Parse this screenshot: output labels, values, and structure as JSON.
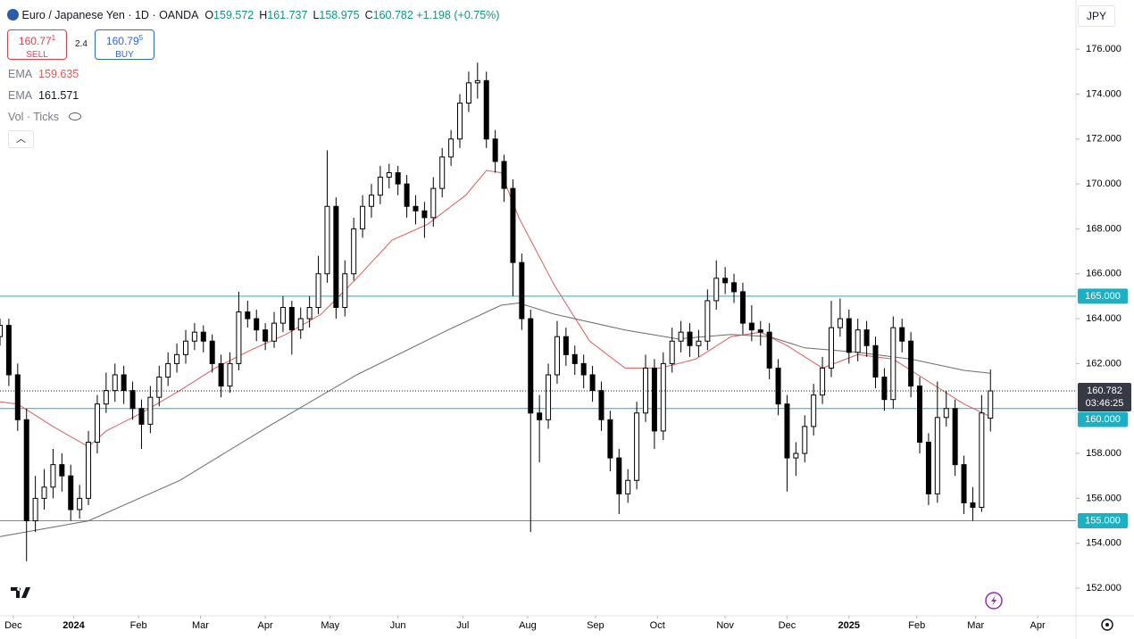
{
  "header": {
    "symbol": "Euro / Japanese Yen",
    "interval": "1D",
    "exchange": "OANDA",
    "ohlc": [
      {
        "key": "O",
        "value": "159.572"
      },
      {
        "key": "H",
        "value": "161.737"
      },
      {
        "key": "L",
        "value": "158.975"
      },
      {
        "key": "C",
        "value": "160.782"
      }
    ],
    "change": "+1.198 (+0.75%)",
    "currency": "JPY"
  },
  "trade": {
    "sell_price": "160.77",
    "sell_pip": "1",
    "sell": "SELL",
    "spread": "2.4",
    "buy_price": "160.79",
    "buy_pip": "5",
    "buy": "BUY"
  },
  "indicators": [
    {
      "name": "EMA",
      "value": "159.635"
    },
    {
      "name": "EMA",
      "value": "161.571"
    },
    {
      "name": "Vol · Ticks"
    }
  ],
  "chart_data": {
    "type": "candlestick",
    "up_color": "#ffffff",
    "down_color": "#000000",
    "grid": false,
    "x": [
      0,
      3,
      6,
      9,
      12,
      15,
      18,
      21,
      24,
      27,
      30,
      33,
      36,
      39,
      42,
      45,
      48,
      51,
      54,
      57,
      60,
      63,
      66,
      69,
      72,
      75,
      78,
      81,
      84,
      87,
      90,
      93,
      96,
      99,
      102,
      105,
      108,
      111,
      114,
      117,
      120,
      123,
      126,
      129,
      132,
      135,
      138,
      141,
      144,
      147,
      150,
      153,
      156,
      159,
      162,
      165,
      168,
      171,
      174,
      177,
      180,
      183,
      186,
      189,
      192,
      195,
      198,
      201,
      204,
      207,
      210,
      213,
      216,
      219,
      222,
      225,
      228,
      231,
      234,
      237,
      240,
      243,
      246,
      249,
      252,
      255,
      258,
      261,
      264,
      267,
      270,
      273,
      276,
      279,
      282,
      285,
      288,
      291,
      294,
      297,
      300,
      303,
      306,
      309,
      312,
      315,
      318,
      321,
      324,
      327,
      330,
      333,
      336
    ],
    "open": [
      163.2,
      163.7,
      161.5,
      159.5,
      155.0,
      156.0,
      156.5,
      157.5,
      157.0,
      155.5,
      156.0,
      158.5,
      160.2,
      160.8,
      161.5,
      160.8,
      160.0,
      159.3,
      160.5,
      161.4,
      162.0,
      162.4,
      163.0,
      163.4,
      163.0,
      162.0,
      161.0,
      162.0,
      164.3,
      164.0,
      163.5,
      163.0,
      163.8,
      164.5,
      163.5,
      164.0,
      164.5,
      166.0,
      169.0,
      164.5,
      166.0,
      168.0,
      169.0,
      169.5,
      170.3,
      170.5,
      170.0,
      169.0,
      168.8,
      168.5,
      169.8,
      171.2,
      172.0,
      173.6,
      174.5,
      174.6,
      172.0,
      171.0,
      169.8,
      166.5,
      164.0,
      159.8,
      159.5,
      161.5,
      163.2,
      162.4,
      162.0,
      161.5,
      160.8,
      159.5,
      157.8,
      156.2,
      156.8,
      159.8,
      161.8,
      159.0,
      162.0,
      163.0,
      163.4,
      162.8,
      163.0,
      164.8,
      165.8,
      165.6,
      165.2,
      163.8,
      163.5,
      163.4,
      161.8,
      160.2,
      157.8,
      158.0,
      159.2,
      160.6,
      161.8,
      163.6,
      164.0,
      162.5,
      163.5,
      162.8,
      161.4,
      160.4,
      163.6,
      163.0,
      161.0,
      158.5,
      156.2,
      159.6,
      160.0,
      157.5,
      155.8,
      155.6,
      159.572
    ],
    "high": [
      164.0,
      164.0,
      162.0,
      160.0,
      157.0,
      157.3,
      158.2,
      158.0,
      157.5,
      156.6,
      159.0,
      160.6,
      161.6,
      162.0,
      161.9,
      161.2,
      160.4,
      161.0,
      161.9,
      162.5,
      162.9,
      163.5,
      163.8,
      163.7,
      163.3,
      162.4,
      162.5,
      165.2,
      164.8,
      164.4,
      163.8,
      164.3,
      165.0,
      164.8,
      164.5,
      165.0,
      166.8,
      171.5,
      169.4,
      166.6,
      168.5,
      169.5,
      170.0,
      170.8,
      170.9,
      170.8,
      170.4,
      169.5,
      169.2,
      170.3,
      171.6,
      172.4,
      174.0,
      175.0,
      175.4,
      175.0,
      172.4,
      171.3,
      170.2,
      166.9,
      164.4,
      160.6,
      162.0,
      163.9,
      163.6,
      162.8,
      162.4,
      161.9,
      161.2,
      159.9,
      158.2,
      157.3,
      160.3,
      162.4,
      162.2,
      162.5,
      163.6,
      163.9,
      163.8,
      163.5,
      165.3,
      166.6,
      166.3,
      166.0,
      165.6,
      164.6,
      163.9,
      163.8,
      162.2,
      160.6,
      158.5,
      159.7,
      161.1,
      162.3,
      164.8,
      164.9,
      164.4,
      164.0,
      163.9,
      163.2,
      161.8,
      164.1,
      164.0,
      163.4,
      161.4,
      158.9,
      161.2,
      160.8,
      160.4,
      157.9,
      156.5,
      160.6,
      161.737
    ],
    "low": [
      162.8,
      161.0,
      159.0,
      153.2,
      154.5,
      155.5,
      156.0,
      156.3,
      155.0,
      155.1,
      155.7,
      158.0,
      159.8,
      160.3,
      160.2,
      159.5,
      158.2,
      158.9,
      160.1,
      161.0,
      161.6,
      162.0,
      162.6,
      162.5,
      161.6,
      160.5,
      160.7,
      161.7,
      163.6,
      163.0,
      162.6,
      162.7,
      163.4,
      162.4,
      163.1,
      163.6,
      164.2,
      165.6,
      164.0,
      164.1,
      165.7,
      167.6,
      168.5,
      169.1,
      169.8,
      169.5,
      168.5,
      168.2,
      167.6,
      168.1,
      169.4,
      170.8,
      171.6,
      173.2,
      173.8,
      171.6,
      170.5,
      169.2,
      165.0,
      163.5,
      154.5,
      157.6,
      159.1,
      161.1,
      161.9,
      161.5,
      160.9,
      160.3,
      159.0,
      157.2,
      155.3,
      155.8,
      156.4,
      159.4,
      158.2,
      158.6,
      161.6,
      162.5,
      162.3,
      162.3,
      162.6,
      164.4,
      165.1,
      164.7,
      163.3,
      163.0,
      162.8,
      161.3,
      159.7,
      156.3,
      157.0,
      157.6,
      158.8,
      160.2,
      161.4,
      163.2,
      162.0,
      162.1,
      162.3,
      160.9,
      159.9,
      160.0,
      162.5,
      160.5,
      158.0,
      155.7,
      155.8,
      159.2,
      157.0,
      155.3,
      155.0,
      155.4,
      158.975
    ],
    "close": [
      163.7,
      161.5,
      159.5,
      155.0,
      156.0,
      156.5,
      157.5,
      157.0,
      155.5,
      156.0,
      158.5,
      160.2,
      160.8,
      161.5,
      160.8,
      160.0,
      159.3,
      160.5,
      161.4,
      162.0,
      162.4,
      163.0,
      163.4,
      163.0,
      162.0,
      161.0,
      162.0,
      164.3,
      164.0,
      163.5,
      163.0,
      163.8,
      164.5,
      163.5,
      164.0,
      164.5,
      166.0,
      169.0,
      164.5,
      166.0,
      168.0,
      169.0,
      169.5,
      170.3,
      170.5,
      170.0,
      169.0,
      168.8,
      168.5,
      169.8,
      171.2,
      172.0,
      173.6,
      174.5,
      174.6,
      172.0,
      171.0,
      169.8,
      166.5,
      164.0,
      159.8,
      159.5,
      161.5,
      163.2,
      162.4,
      162.0,
      161.5,
      160.8,
      159.5,
      157.8,
      156.2,
      156.8,
      159.8,
      161.8,
      159.0,
      162.0,
      163.0,
      163.4,
      162.8,
      163.0,
      164.8,
      165.8,
      165.6,
      165.2,
      163.8,
      163.5,
      163.4,
      161.8,
      160.2,
      157.8,
      158.0,
      159.2,
      160.6,
      161.8,
      163.6,
      164.0,
      162.5,
      163.5,
      162.8,
      161.4,
      160.4,
      163.6,
      163.0,
      161.0,
      158.5,
      156.2,
      159.6,
      160.0,
      157.5,
      155.8,
      155.6,
      159.8,
      160.782
    ],
    "lines": [
      {
        "color": "#e05a5a",
        "x": [
          0,
          6,
          18,
          30,
          36,
          48,
          61,
          73,
          85,
          97,
          109,
          121,
          133,
          145,
          158,
          165,
          170,
          176,
          188,
          200,
          212,
          224,
          236,
          248,
          258,
          267,
          279,
          291,
          303,
          315,
          327,
          336
        ],
        "values": [
          160.3,
          160.2,
          159.2,
          158.3,
          159.0,
          159.8,
          160.8,
          161.8,
          162.6,
          163.3,
          164.2,
          165.8,
          167.5,
          168.2,
          169.5,
          170.6,
          170.5,
          168.5,
          165.5,
          163.0,
          161.8,
          161.8,
          162.2,
          163.2,
          163.4,
          162.8,
          161.8,
          162.4,
          162.2,
          161.2,
          160.2,
          159.635
        ]
      },
      {
        "color": "#6b6b6b",
        "x": [
          0,
          30,
          61,
          91,
          121,
          152,
          170,
          176,
          188,
          212,
          230,
          248,
          261,
          273,
          291,
          309,
          327,
          336
        ],
        "values": [
          154.3,
          155.0,
          156.8,
          159.2,
          161.5,
          163.5,
          164.6,
          164.7,
          164.2,
          163.5,
          163.1,
          163.3,
          163.2,
          162.7,
          162.5,
          162.2,
          161.7,
          161.571
        ]
      }
    ],
    "price_lines": {
      "color": "#1ab0c6",
      "levels": [
        {
          "value": 165,
          "label": "165.000"
        },
        {
          "value": 160,
          "label": "160.000"
        },
        {
          "value": 155,
          "label": "155.000"
        }
      ]
    },
    "last_price": {
      "value": 160.782,
      "label": "160.782",
      "countdown": "03:46:25"
    },
    "xlim": [
      0,
      365
    ],
    "xticks": [
      {
        "value": 4.5,
        "label": "Dec"
      },
      {
        "value": 25,
        "label": "2024"
      },
      {
        "value": 47,
        "label": "Feb"
      },
      {
        "value": 68,
        "label": "Mar"
      },
      {
        "value": 90,
        "label": "Apr"
      },
      {
        "value": 112,
        "label": "May"
      },
      {
        "value": 135,
        "label": "Jun"
      },
      {
        "value": 157,
        "label": "Jul"
      },
      {
        "value": 179,
        "label": "Aug"
      },
      {
        "value": 202,
        "label": "Sep"
      },
      {
        "value": 223,
        "label": "Oct"
      },
      {
        "value": 246,
        "label": "Nov"
      },
      {
        "value": 267,
        "label": "Dec"
      },
      {
        "value": 288,
        "label": "2025"
      },
      {
        "value": 311,
        "label": "Feb"
      },
      {
        "value": 331,
        "label": "Mar"
      },
      {
        "value": 352,
        "label": "Apr"
      }
    ],
    "ylim": [
      150.77,
      178.19
    ],
    "yticks": [
      {
        "value": 152,
        "label": "152.000"
      },
      {
        "value": 154,
        "label": "154.000"
      },
      {
        "value": 156,
        "label": "156.000"
      },
      {
        "value": 158,
        "label": "158.000"
      },
      {
        "value": 160,
        "label": "160.000"
      },
      {
        "value": 162,
        "label": "162.000"
      },
      {
        "value": 164,
        "label": "164.000"
      },
      {
        "value": 166,
        "label": "166.000"
      },
      {
        "value": 168,
        "label": "168.000"
      },
      {
        "value": 170,
        "label": "170.000"
      },
      {
        "value": 172,
        "label": "172.000"
      },
      {
        "value": 174,
        "label": "174.000"
      },
      {
        "value": 176,
        "label": "176.000"
      }
    ]
  }
}
